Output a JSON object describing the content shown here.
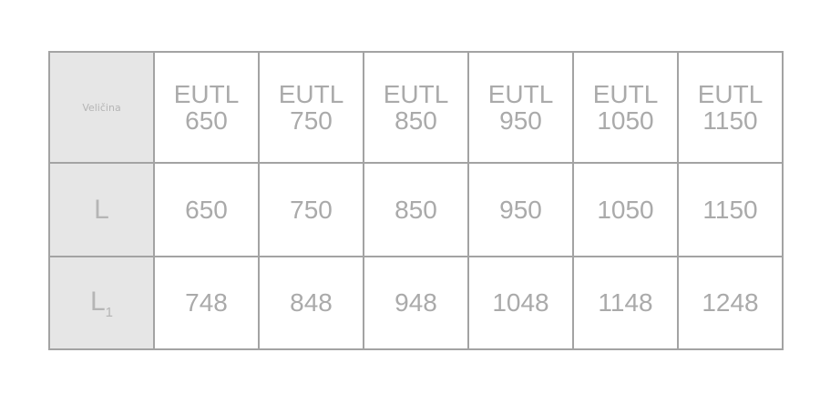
{
  "table": {
    "corner_label": "Veličina",
    "columns": [
      {
        "line1": "EUTL",
        "line2": "650"
      },
      {
        "line1": "EUTL",
        "line2": "750"
      },
      {
        "line1": "EUTL",
        "line2": "850"
      },
      {
        "line1": "EUTL",
        "line2": "950"
      },
      {
        "line1": "EUTL",
        "line2": "1050"
      },
      {
        "line1": "EUTL",
        "line2": "1150"
      }
    ],
    "rows": [
      {
        "symbol": "L",
        "subscript": "",
        "values": [
          "650",
          "750",
          "850",
          "950",
          "1050",
          "1150"
        ]
      },
      {
        "symbol": "L",
        "subscript": "1",
        "values": [
          "748",
          "848",
          "948",
          "1048",
          "1148",
          "1248"
        ]
      }
    ]
  }
}
